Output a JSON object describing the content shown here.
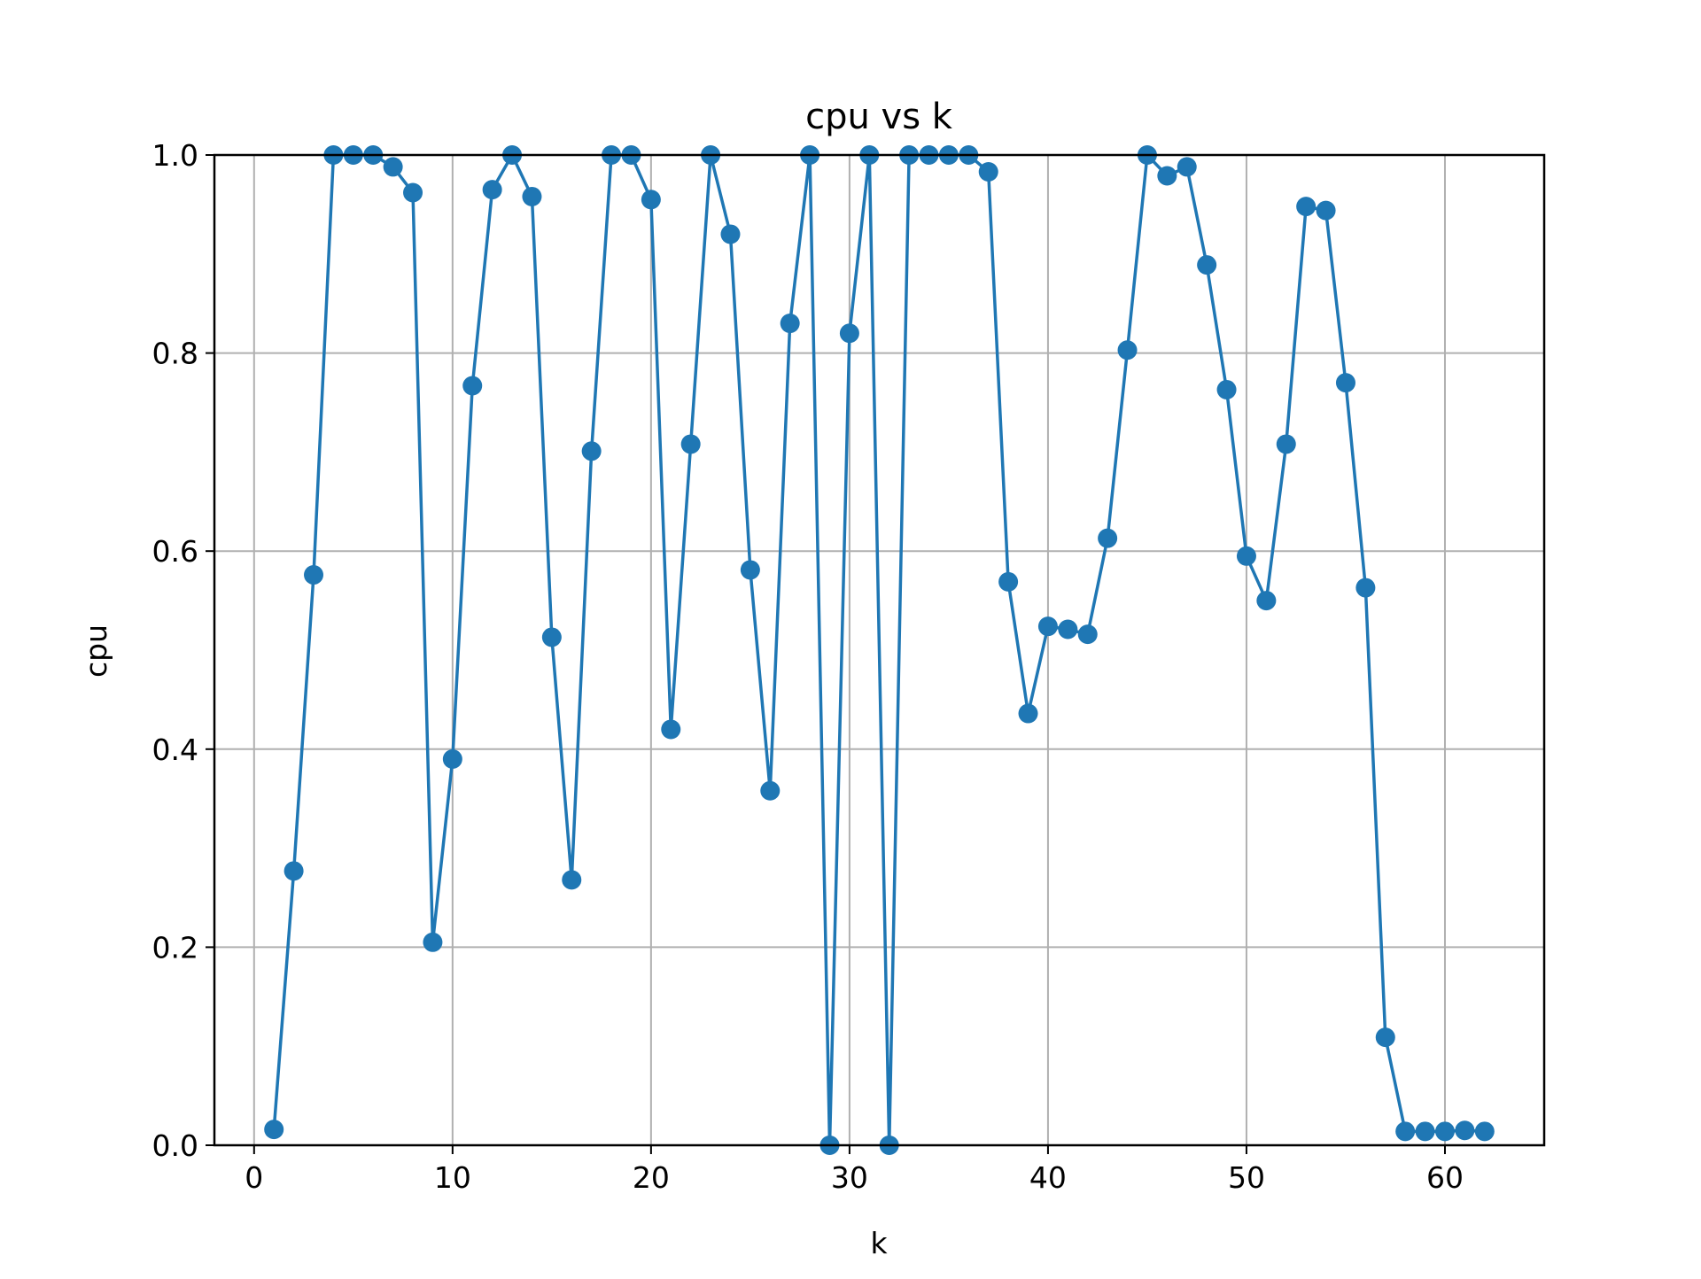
{
  "chart_data": {
    "type": "line",
    "title": "cpu vs k",
    "xlabel": "k",
    "ylabel": "cpu",
    "xlim": [
      -2,
      65
    ],
    "ylim": [
      0.0,
      1.0
    ],
    "xticks": [
      0,
      10,
      20,
      30,
      40,
      50,
      60
    ],
    "xtick_labels": [
      "0",
      "10",
      "20",
      "30",
      "40",
      "50",
      "60"
    ],
    "yticks": [
      0.0,
      0.2,
      0.4,
      0.6,
      0.8,
      1.0
    ],
    "ytick_labels": [
      "0.0",
      "0.2",
      "0.4",
      "0.6",
      "0.8",
      "1.0"
    ],
    "grid": true,
    "marker": "circle",
    "color": "#1f77b4",
    "series": [
      {
        "x": [
          1,
          2,
          3,
          4,
          5,
          6,
          7,
          8,
          9,
          10,
          11,
          12,
          13,
          14,
          15,
          16,
          17,
          18,
          19,
          20,
          21,
          22,
          23,
          24,
          25,
          26,
          27,
          28,
          29,
          30,
          31,
          32,
          33,
          34,
          35,
          36,
          37,
          38,
          39,
          40,
          41,
          42,
          43,
          44,
          45,
          46,
          47,
          48,
          49,
          50,
          51,
          52,
          53,
          54,
          55,
          56,
          57,
          58,
          59,
          60,
          61,
          62
        ],
        "values": [
          0.016,
          0.277,
          0.576,
          1.0,
          1.0,
          1.0,
          0.988,
          0.962,
          0.205,
          0.39,
          0.767,
          0.965,
          1.0,
          0.958,
          0.513,
          0.268,
          0.701,
          1.0,
          1.0,
          0.955,
          0.42,
          0.708,
          1.0,
          0.92,
          0.581,
          0.358,
          0.83,
          1.0,
          0.0,
          0.82,
          1.0,
          0.0,
          1.0,
          1.0,
          1.0,
          1.0,
          0.983,
          0.569,
          0.436,
          0.524,
          0.521,
          0.516,
          0.613,
          0.803,
          1.0,
          0.979,
          0.988,
          0.889,
          0.763,
          0.595,
          0.55,
          0.708,
          0.948,
          0.944,
          0.77,
          0.563,
          0.109,
          0.014,
          0.014,
          0.014,
          0.015,
          0.014
        ]
      }
    ]
  }
}
